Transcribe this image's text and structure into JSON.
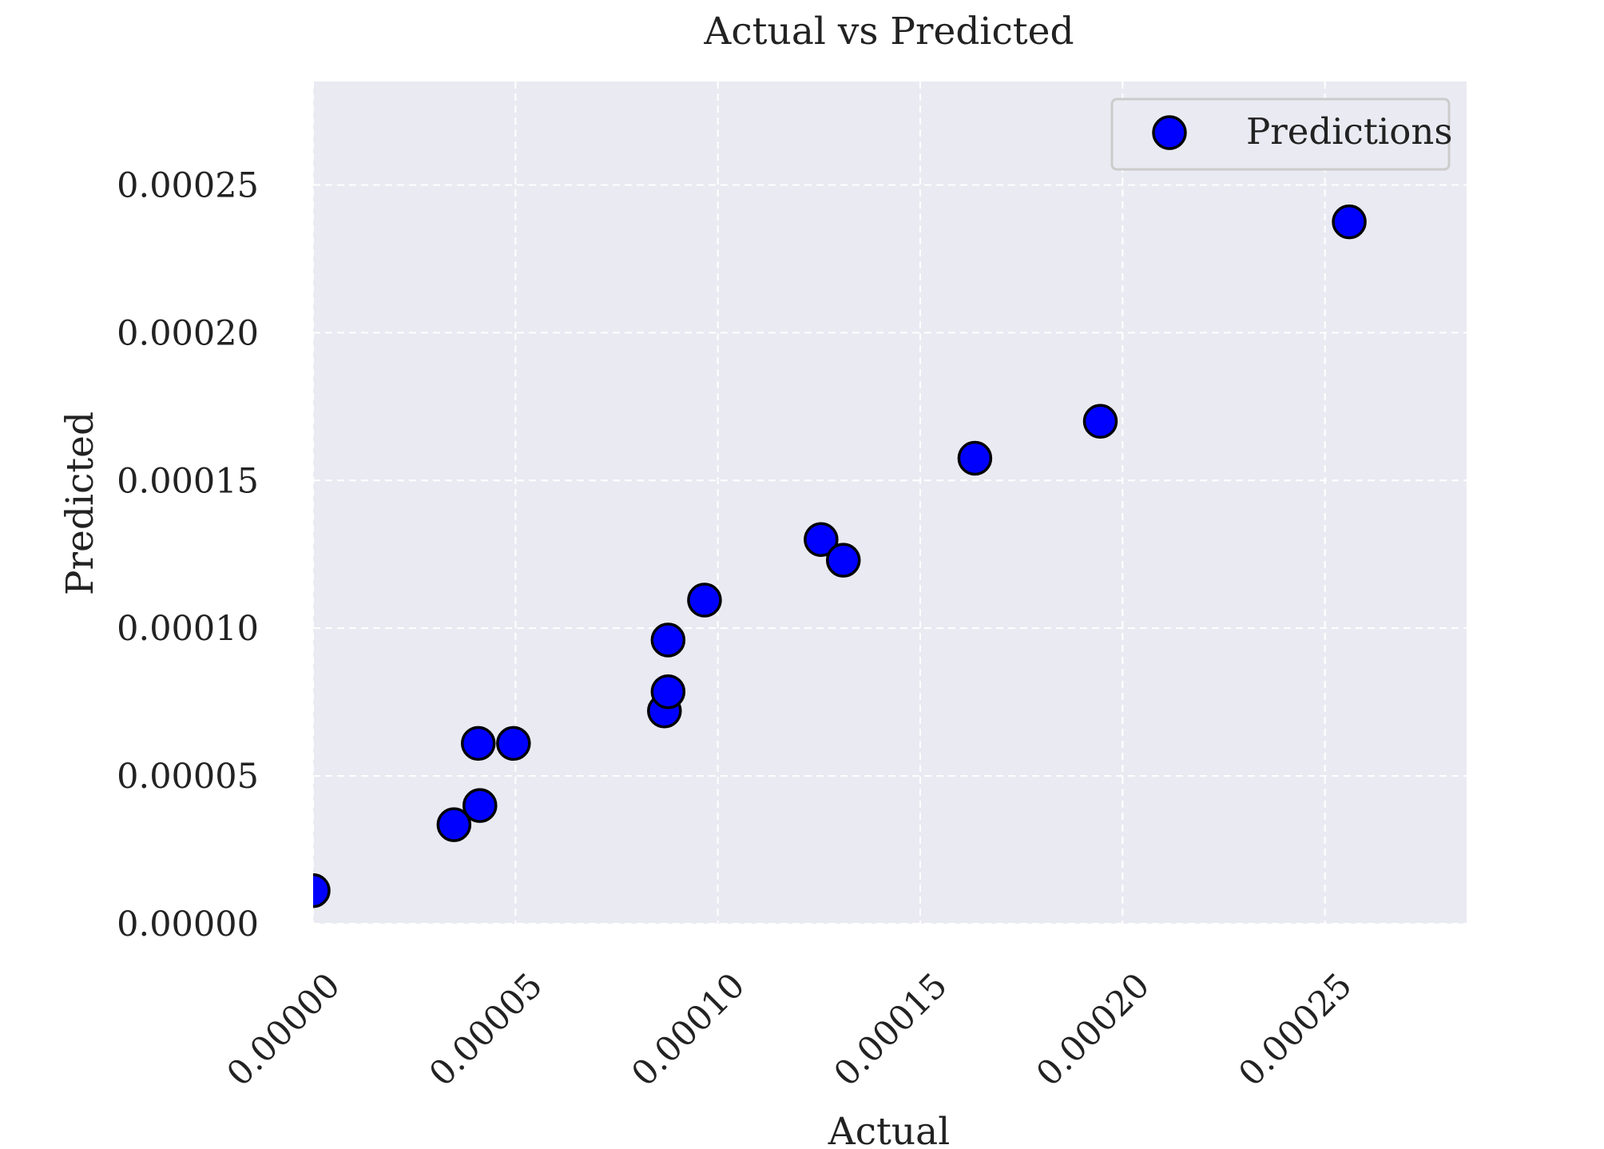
{
  "chart_data": {
    "type": "scatter",
    "title": "Actual vs Predicted",
    "xlabel": "Actual",
    "ylabel": "Predicted",
    "xlim": [
      0,
      0.000285
    ],
    "ylim": [
      0,
      0.000285
    ],
    "x_ticks": [
      "0.00000",
      "0.00005",
      "0.00010",
      "0.00015",
      "0.00020",
      "0.00025"
    ],
    "y_ticks": [
      "0.00000",
      "0.00005",
      "0.00010",
      "0.00015",
      "0.00020",
      "0.00025"
    ],
    "tick_values": [
      0,
      5e-05,
      0.0001,
      0.00015,
      0.0002,
      0.00025
    ],
    "grid": true,
    "grid_style": "dashed",
    "legend_position": "top-right",
    "series": [
      {
        "name": "Predictions",
        "color": "#0000ff",
        "edge_color": "#000000",
        "points": [
          {
            "x": 0.0,
            "y": 1.12e-05
          },
          {
            "x": 3.48e-05,
            "y": 3.35e-05
          },
          {
            "x": 4.12e-05,
            "y": 4e-05
          },
          {
            "x": 4.08e-05,
            "y": 6.1e-05
          },
          {
            "x": 4.95e-05,
            "y": 6.1e-05
          },
          {
            "x": 8.68e-05,
            "y": 7.2e-05
          },
          {
            "x": 8.77e-05,
            "y": 7.85e-05
          },
          {
            "x": 8.77e-05,
            "y": 9.6e-05
          },
          {
            "x": 9.67e-05,
            "y": 0.0001095
          },
          {
            "x": 0.0001255,
            "y": 0.00013
          },
          {
            "x": 0.000131,
            "y": 0.000123
          },
          {
            "x": 0.0001635,
            "y": 0.0001575
          },
          {
            "x": 0.0001945,
            "y": 0.00017
          },
          {
            "x": 0.000256,
            "y": 0.0002375
          }
        ]
      }
    ]
  },
  "colors": {
    "plot_background": "#eaeaf2",
    "grid": "#ffffff",
    "legend_border": "#cccccc"
  }
}
